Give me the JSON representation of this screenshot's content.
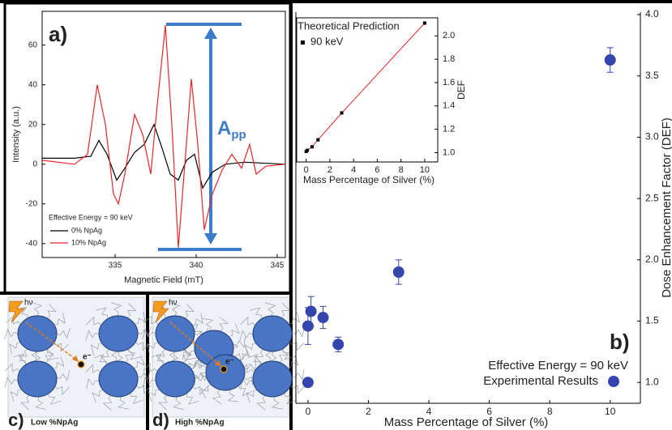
{
  "chart_data": [
    {
      "type": "line",
      "label": "a)",
      "annotation": "Effective Energy = 90 keV",
      "amplitude_label": {
        "text": "A",
        "sub": "pp"
      },
      "xlabel": "Magnetic Field (mT)",
      "ylabel": "Intensity (a.u.)",
      "xlim": [
        330.5,
        345.5
      ],
      "ylim": [
        -47,
        77
      ],
      "xticks": [
        335,
        340,
        345
      ],
      "yticks": [
        -40,
        -20,
        0,
        20,
        40,
        60
      ],
      "series": [
        {
          "name": "0% NpAg",
          "color": "#000000",
          "x": [
            330.5,
            332.5,
            333.5,
            334.0,
            334.5,
            335.1,
            335.6,
            336.2,
            336.8,
            337.4,
            337.9,
            338.4,
            338.9,
            339.4,
            339.9,
            340.4,
            341.0,
            341.8,
            343.0,
            345.5
          ],
          "values": [
            3,
            3,
            4,
            12,
            5,
            -8,
            -2,
            6,
            10,
            20,
            8,
            -5,
            -8,
            2,
            5,
            -12,
            -4,
            0,
            1,
            0
          ]
        },
        {
          "name": "10% NpAg",
          "color": "#e8262a",
          "x": [
            330.5,
            332.5,
            333.3,
            333.9,
            334.4,
            334.9,
            335.2,
            335.6,
            336.2,
            336.7,
            337.2,
            337.6,
            338.1,
            338.5,
            338.9,
            339.3,
            339.7,
            340.1,
            340.5,
            341.0,
            341.6,
            342.2,
            342.8,
            343.3,
            343.7,
            344.3,
            345.5
          ],
          "values": [
            2,
            0,
            5,
            40,
            20,
            -15,
            -20,
            -5,
            25,
            15,
            -5,
            30,
            70,
            20,
            -42,
            0,
            43,
            10,
            -33,
            -15,
            -3,
            5,
            -2,
            10,
            -5,
            -1,
            0
          ]
        }
      ]
    },
    {
      "type": "errorbar",
      "label": "b)",
      "annotation": "Effective Energy = 90 keV",
      "xlabel": "Mass Percentage of Silver (%)",
      "ylabel": "Dose Enhancement Factor (DEF)",
      "xlim": [
        -0.4,
        11
      ],
      "ylim": [
        0.83,
        4.02
      ],
      "xticks": [
        0,
        2,
        4,
        6,
        8,
        10
      ],
      "yticks": [
        {
          "value": 1,
          "label": "1.0"
        },
        1.5,
        {
          "value": 2,
          "label": "2.0"
        },
        2.5,
        {
          "value": 3,
          "label": "3.0"
        },
        3.5,
        {
          "value": 4,
          "label": "4.0"
        }
      ],
      "series": [
        {
          "name": "Experimental Results",
          "color": "#3445ad",
          "x": [
            0,
            0,
            0.1,
            0.5,
            1,
            3,
            10
          ],
          "values": [
            1.0,
            1.46,
            1.58,
            1.53,
            1.31,
            1.9,
            3.63
          ],
          "errors": [
            0,
            0.15,
            0.12,
            0.09,
            0.06,
            0.1,
            0.1
          ]
        }
      ]
    },
    {
      "type": "scatter",
      "legend_title": "Theoretical Prediction",
      "xlabel": "Mass Percentage of Silver (%)",
      "ylabel": "DEF",
      "xlim": [
        -0.8,
        11.1
      ],
      "ylim": [
        0.92,
        2.155
      ],
      "xticks": [
        0,
        2,
        4,
        6,
        8,
        10
      ],
      "yticks": [
        {
          "value": 1,
          "label": "1.0"
        },
        1.2,
        1.4,
        1.6,
        1.8,
        {
          "value": 2,
          "label": "2.0"
        }
      ],
      "series": [
        {
          "name": "90 keV",
          "color": "#000000",
          "line_color": "#e8262a",
          "x": [
            0,
            0.1,
            0.5,
            1,
            3,
            10
          ],
          "values": [
            1.01,
            1.02,
            1.05,
            1.11,
            1.34,
            2.11
          ]
        }
      ]
    }
  ],
  "illustrations": [
    {
      "label": "c)",
      "caption": "Low %NpAg",
      "photon": "hν",
      "electron": "e⁻"
    },
    {
      "label": "d)",
      "caption": "High %NpAg",
      "photon": "hν",
      "electron": "e⁻"
    }
  ]
}
